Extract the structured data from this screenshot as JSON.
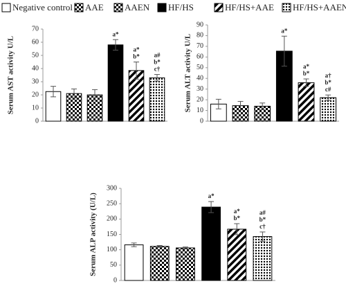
{
  "chart_data": [
    {
      "type": "bar",
      "y_label": "Serum AST activity U/L",
      "ylim": [
        0,
        70
      ],
      "yticks": [
        0,
        10,
        20,
        30,
        40,
        50,
        60,
        70
      ],
      "series": [
        {
          "name": "Negative control",
          "pattern": "none",
          "color": "#000000",
          "values": [
            22.5
          ],
          "errors": [
            4
          ]
        },
        {
          "name": "AAE",
          "pattern": "checker",
          "color": "#000000",
          "values": [
            21
          ],
          "errors": [
            3.5
          ]
        },
        {
          "name": "AAEN",
          "pattern": "checker",
          "color": "#000000",
          "values": [
            20
          ],
          "errors": [
            4
          ]
        },
        {
          "name": "HF/HS",
          "pattern": "solid",
          "color": "#000000",
          "values": [
            58
          ],
          "errors": [
            4
          ],
          "annotations": [
            "a*"
          ]
        },
        {
          "name": "HF/HS+AAE",
          "pattern": "stripes",
          "color": "#000000",
          "values": [
            38.5
          ],
          "errors": [
            6.5
          ],
          "annotations": [
            "a*",
            "b*"
          ]
        },
        {
          "name": "HF/HS+AAEN",
          "pattern": "dots",
          "color": "#000000",
          "values": [
            33
          ],
          "errors": [
            2.5
          ],
          "annotations": [
            "a#",
            "b*",
            "c†"
          ]
        }
      ]
    },
    {
      "type": "bar",
      "y_label": "Serum ALT activity U/L",
      "ylim": [
        0,
        90
      ],
      "yticks": [
        0,
        10,
        20,
        30,
        40,
        50,
        60,
        70,
        80,
        90
      ],
      "series": [
        {
          "name": "Negative control",
          "pattern": "none",
          "color": "#000000",
          "values": [
            16
          ],
          "errors": [
            4.5
          ]
        },
        {
          "name": "AAE",
          "pattern": "checker",
          "color": "#000000",
          "values": [
            14.5
          ],
          "errors": [
            4
          ]
        },
        {
          "name": "AAEN",
          "pattern": "checker",
          "color": "#000000",
          "values": [
            14
          ],
          "errors": [
            3
          ]
        },
        {
          "name": "HF/HS",
          "pattern": "solid",
          "color": "#000000",
          "values": [
            65.5
          ],
          "errors": [
            14
          ],
          "annotations": [
            "a*"
          ]
        },
        {
          "name": "HF/HS+AAE",
          "pattern": "stripes",
          "color": "#000000",
          "values": [
            36
          ],
          "errors": [
            3.5
          ],
          "annotations": [
            "a*",
            "b*"
          ]
        },
        {
          "name": "HF/HS+AAEN",
          "pattern": "dots",
          "color": "#000000",
          "values": [
            22
          ],
          "errors": [
            2.5
          ],
          "annotations": [
            "a†",
            "b*",
            "c#"
          ]
        }
      ]
    },
    {
      "type": "bar",
      "y_label": "Serum ALP activity (U/L)",
      "ylim": [
        0,
        300
      ],
      "yticks": [
        0,
        50,
        100,
        150,
        200,
        250,
        300
      ],
      "series": [
        {
          "name": "Negative control",
          "pattern": "none",
          "color": "#000000",
          "values": [
            116
          ],
          "errors": [
            6
          ]
        },
        {
          "name": "AAE",
          "pattern": "checker",
          "color": "#000000",
          "values": [
            111
          ],
          "errors": [
            3
          ]
        },
        {
          "name": "AAEN",
          "pattern": "checker",
          "color": "#000000",
          "values": [
            106
          ],
          "errors": [
            3
          ]
        },
        {
          "name": "HF/HS",
          "pattern": "solid",
          "color": "#000000",
          "values": [
            239
          ],
          "errors": [
            18
          ],
          "annotations": [
            "a*"
          ]
        },
        {
          "name": "HF/HS+AAE",
          "pattern": "stripes",
          "color": "#000000",
          "values": [
            167
          ],
          "errors": [
            18
          ],
          "annotations": [
            "a*",
            "b*"
          ]
        },
        {
          "name": "HF/HS+AAEN",
          "pattern": "dots",
          "color": "#000000",
          "values": [
            143
          ],
          "errors": [
            15
          ],
          "annotations": [
            "a#",
            "b*",
            "c†"
          ]
        }
      ]
    }
  ]
}
